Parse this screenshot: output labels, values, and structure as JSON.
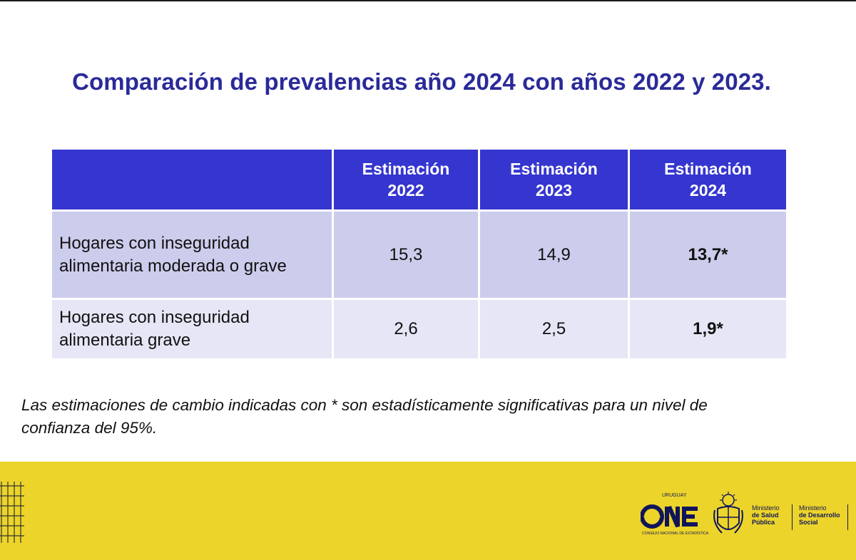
{
  "title": "Comparación de prevalencias año 2024 con años 2022 y 2023.",
  "table": {
    "headers": [
      {
        "line1": "Estimación",
        "line2": "2022"
      },
      {
        "line1": "Estimación",
        "line2": "2023"
      },
      {
        "line1": "Estimación",
        "line2": "2024"
      }
    ],
    "rows": [
      {
        "label_line1": "Hogares con inseguridad",
        "label_line2": "alimentaria moderada o grave",
        "values": [
          "15,3",
          "14,9",
          "13,7*"
        ]
      },
      {
        "label_line1": "Hogares con inseguridad",
        "label_line2": "alimentaria grave",
        "values": [
          "2,6",
          "2,5",
          "1,9*"
        ]
      }
    ]
  },
  "footnote": {
    "line1": "Las estimaciones de cambio indicadas con * son estadísticamente significativas para un nivel de",
    "line2": "confianza del 95%."
  },
  "footer": {
    "band_color": "#ecd42a",
    "logo_one": {
      "text": "ONE",
      "top": "URUGUAY",
      "sub": "CONSEJO NACIONAL DE ESTADÍSTICA"
    },
    "ministry1": {
      "line1": "Ministerio",
      "line2": "de Salud",
      "line3": "Pública"
    },
    "ministry2": {
      "line1": "Ministerio",
      "line2": "de Desarrollo",
      "line3": "Social"
    }
  },
  "colors": {
    "title": "#2a2a9a",
    "header_bg": "#3535cf",
    "row1_bg": "#ccccec",
    "row2_bg": "#e6e6f6"
  },
  "icons": [
    "grid-decoration-icon",
    "one-logo",
    "uruguay-emblem-icon"
  ]
}
